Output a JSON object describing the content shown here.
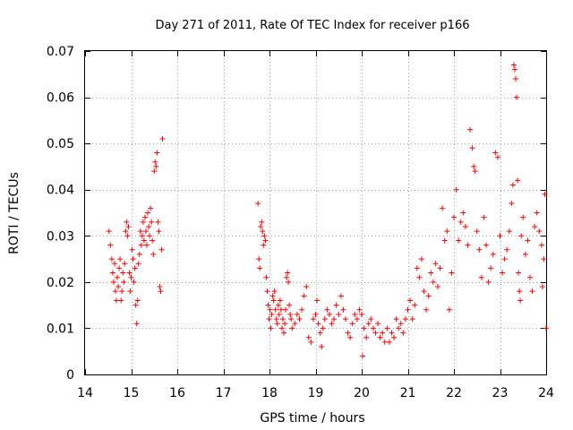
{
  "chart_data": {
    "type": "scatter",
    "title": "Day 271 of 2011, Rate Of TEC Index for receiver p166",
    "xlabel": "GPS time / hours",
    "ylabel": "ROTI / TECUs",
    "xlim": [
      14,
      24
    ],
    "ylim": [
      0,
      0.07
    ],
    "x_ticks": [
      14,
      15,
      16,
      17,
      18,
      19,
      20,
      21,
      22,
      23,
      24
    ],
    "x_tick_labels": [
      "14",
      "15",
      "16",
      "17",
      "18",
      "19",
      "20",
      "21",
      "22",
      "23",
      "24"
    ],
    "y_ticks": [
      0,
      0.01,
      0.02,
      0.03,
      0.04,
      0.05,
      0.06,
      0.07
    ],
    "y_tick_labels": [
      "0",
      "0.01",
      "0.02",
      "0.03",
      "0.04",
      "0.05",
      "0.06",
      "0.07"
    ],
    "grid": true,
    "marker": "+",
    "color": "#ff0000",
    "series": [
      {
        "name": "ROTI",
        "points": [
          [
            14.52,
            0.031
          ],
          [
            14.55,
            0.028
          ],
          [
            14.58,
            0.025
          ],
          [
            14.6,
            0.022
          ],
          [
            14.62,
            0.02
          ],
          [
            14.64,
            0.024
          ],
          [
            14.66,
            0.018
          ],
          [
            14.68,
            0.016
          ],
          [
            14.7,
            0.021
          ],
          [
            14.72,
            0.019
          ],
          [
            14.74,
            0.023
          ],
          [
            14.76,
            0.025
          ],
          [
            14.78,
            0.016
          ],
          [
            14.8,
            0.018
          ],
          [
            14.82,
            0.022
          ],
          [
            14.84,
            0.02
          ],
          [
            14.86,
            0.024
          ],
          [
            14.88,
            0.031
          ],
          [
            14.9,
            0.033
          ],
          [
            14.92,
            0.03
          ],
          [
            14.94,
            0.032
          ],
          [
            14.96,
            0.022
          ],
          [
            14.98,
            0.018
          ],
          [
            15.0,
            0.021
          ],
          [
            15.02,
            0.027
          ],
          [
            15.04,
            0.025
          ],
          [
            15.06,
            0.02
          ],
          [
            15.08,
            0.023
          ],
          [
            15.1,
            0.015
          ],
          [
            15.12,
            0.011
          ],
          [
            15.14,
            0.016
          ],
          [
            15.16,
            0.024
          ],
          [
            15.18,
            0.026
          ],
          [
            15.2,
            0.031
          ],
          [
            15.22,
            0.028
          ],
          [
            15.24,
            0.03
          ],
          [
            15.26,
            0.033
          ],
          [
            15.28,
            0.029
          ],
          [
            15.3,
            0.034
          ],
          [
            15.32,
            0.031
          ],
          [
            15.34,
            0.028
          ],
          [
            15.36,
            0.035
          ],
          [
            15.38,
            0.032
          ],
          [
            15.4,
            0.03
          ],
          [
            15.42,
            0.036
          ],
          [
            15.44,
            0.033
          ],
          [
            15.46,
            0.029
          ],
          [
            15.48,
            0.026
          ],
          [
            15.5,
            0.044
          ],
          [
            15.52,
            0.046
          ],
          [
            15.54,
            0.045
          ],
          [
            15.56,
            0.048
          ],
          [
            15.58,
            0.033
          ],
          [
            15.6,
            0.031
          ],
          [
            15.62,
            0.019
          ],
          [
            15.64,
            0.018
          ],
          [
            15.66,
            0.027
          ],
          [
            15.68,
            0.051
          ],
          [
            17.75,
            0.037
          ],
          [
            17.77,
            0.025
          ],
          [
            17.79,
            0.023
          ],
          [
            17.81,
            0.032
          ],
          [
            17.83,
            0.033
          ],
          [
            17.85,
            0.031
          ],
          [
            17.87,
            0.028
          ],
          [
            17.89,
            0.03
          ],
          [
            17.91,
            0.029
          ],
          [
            17.93,
            0.021
          ],
          [
            17.95,
            0.018
          ],
          [
            17.97,
            0.015
          ],
          [
            17.99,
            0.012
          ],
          [
            18.01,
            0.014
          ],
          [
            18.03,
            0.01
          ],
          [
            18.05,
            0.013
          ],
          [
            18.07,
            0.017
          ],
          [
            18.09,
            0.016
          ],
          [
            18.11,
            0.018
          ],
          [
            18.13,
            0.014
          ],
          [
            18.15,
            0.012
          ],
          [
            18.17,
            0.011
          ],
          [
            18.19,
            0.015
          ],
          [
            18.21,
            0.013
          ],
          [
            18.23,
            0.016
          ],
          [
            18.25,
            0.014
          ],
          [
            18.27,
            0.01
          ],
          [
            18.29,
            0.012
          ],
          [
            18.31,
            0.009
          ],
          [
            18.33,
            0.011
          ],
          [
            18.35,
            0.014
          ],
          [
            18.37,
            0.021
          ],
          [
            18.39,
            0.022
          ],
          [
            18.41,
            0.02
          ],
          [
            18.43,
            0.015
          ],
          [
            18.45,
            0.013
          ],
          [
            18.47,
            0.012
          ],
          [
            18.49,
            0.01
          ],
          [
            18.55,
            0.011
          ],
          [
            18.6,
            0.013
          ],
          [
            18.65,
            0.012
          ],
          [
            18.7,
            0.014
          ],
          [
            18.75,
            0.017
          ],
          [
            18.8,
            0.019
          ],
          [
            18.85,
            0.008
          ],
          [
            18.9,
            0.007
          ],
          [
            18.95,
            0.012
          ],
          [
            19.0,
            0.013
          ],
          [
            19.03,
            0.016
          ],
          [
            19.06,
            0.011
          ],
          [
            19.1,
            0.009
          ],
          [
            19.13,
            0.006
          ],
          [
            19.16,
            0.01
          ],
          [
            19.2,
            0.012
          ],
          [
            19.25,
            0.014
          ],
          [
            19.3,
            0.013
          ],
          [
            19.35,
            0.011
          ],
          [
            19.4,
            0.012
          ],
          [
            19.45,
            0.015
          ],
          [
            19.5,
            0.013
          ],
          [
            19.55,
            0.017
          ],
          [
            19.6,
            0.014
          ],
          [
            19.65,
            0.012
          ],
          [
            19.7,
            0.009
          ],
          [
            19.75,
            0.008
          ],
          [
            19.8,
            0.011
          ],
          [
            19.85,
            0.013
          ],
          [
            19.9,
            0.012
          ],
          [
            19.95,
            0.014
          ],
          [
            20.0,
            0.013
          ],
          [
            20.02,
            0.004
          ],
          [
            20.05,
            0.01
          ],
          [
            20.1,
            0.008
          ],
          [
            20.15,
            0.011
          ],
          [
            20.2,
            0.012
          ],
          [
            20.25,
            0.01
          ],
          [
            20.3,
            0.009
          ],
          [
            20.35,
            0.011
          ],
          [
            20.4,
            0.008
          ],
          [
            20.45,
            0.009
          ],
          [
            20.5,
            0.007
          ],
          [
            20.55,
            0.01
          ],
          [
            20.6,
            0.007
          ],
          [
            20.65,
            0.009
          ],
          [
            20.7,
            0.008
          ],
          [
            20.75,
            0.012
          ],
          [
            20.8,
            0.01
          ],
          [
            20.85,
            0.011
          ],
          [
            20.9,
            0.009
          ],
          [
            20.95,
            0.012
          ],
          [
            21.0,
            0.014
          ],
          [
            21.05,
            0.016
          ],
          [
            21.1,
            0.012
          ],
          [
            21.15,
            0.015
          ],
          [
            21.2,
            0.023
          ],
          [
            21.25,
            0.021
          ],
          [
            21.3,
            0.025
          ],
          [
            21.35,
            0.018
          ],
          [
            21.4,
            0.014
          ],
          [
            21.45,
            0.017
          ],
          [
            21.5,
            0.022
          ],
          [
            21.55,
            0.02
          ],
          [
            21.6,
            0.024
          ],
          [
            21.65,
            0.019
          ],
          [
            21.7,
            0.023
          ],
          [
            21.75,
            0.036
          ],
          [
            21.8,
            0.029
          ],
          [
            21.85,
            0.031
          ],
          [
            21.9,
            0.014
          ],
          [
            21.95,
            0.022
          ],
          [
            22.0,
            0.034
          ],
          [
            22.05,
            0.04
          ],
          [
            22.1,
            0.029
          ],
          [
            22.15,
            0.033
          ],
          [
            22.2,
            0.035
          ],
          [
            22.25,
            0.032
          ],
          [
            22.3,
            0.028
          ],
          [
            22.35,
            0.053
          ],
          [
            22.4,
            0.049
          ],
          [
            22.43,
            0.045
          ],
          [
            22.46,
            0.044
          ],
          [
            22.5,
            0.031
          ],
          [
            22.55,
            0.027
          ],
          [
            22.6,
            0.021
          ],
          [
            22.65,
            0.034
          ],
          [
            22.7,
            0.028
          ],
          [
            22.75,
            0.02
          ],
          [
            22.8,
            0.023
          ],
          [
            22.85,
            0.026
          ],
          [
            22.9,
            0.048
          ],
          [
            22.95,
            0.047
          ],
          [
            23.0,
            0.03
          ],
          [
            23.05,
            0.022
          ],
          [
            23.1,
            0.025
          ],
          [
            23.15,
            0.027
          ],
          [
            23.2,
            0.031
          ],
          [
            23.25,
            0.037
          ],
          [
            23.28,
            0.041
          ],
          [
            23.3,
            0.067
          ],
          [
            23.32,
            0.066
          ],
          [
            23.34,
            0.064
          ],
          [
            23.36,
            0.06
          ],
          [
            23.38,
            0.042
          ],
          [
            23.4,
            0.022
          ],
          [
            23.42,
            0.018
          ],
          [
            23.44,
            0.016
          ],
          [
            23.46,
            0.03
          ],
          [
            23.5,
            0.034
          ],
          [
            23.55,
            0.026
          ],
          [
            23.6,
            0.029
          ],
          [
            23.65,
            0.021
          ],
          [
            23.7,
            0.018
          ],
          [
            23.75,
            0.032
          ],
          [
            23.8,
            0.035
          ],
          [
            23.85,
            0.031
          ],
          [
            23.9,
            0.028
          ],
          [
            23.92,
            0.019
          ],
          [
            23.95,
            0.025
          ],
          [
            23.97,
            0.039
          ],
          [
            24.0,
            0.01
          ]
        ]
      }
    ]
  }
}
